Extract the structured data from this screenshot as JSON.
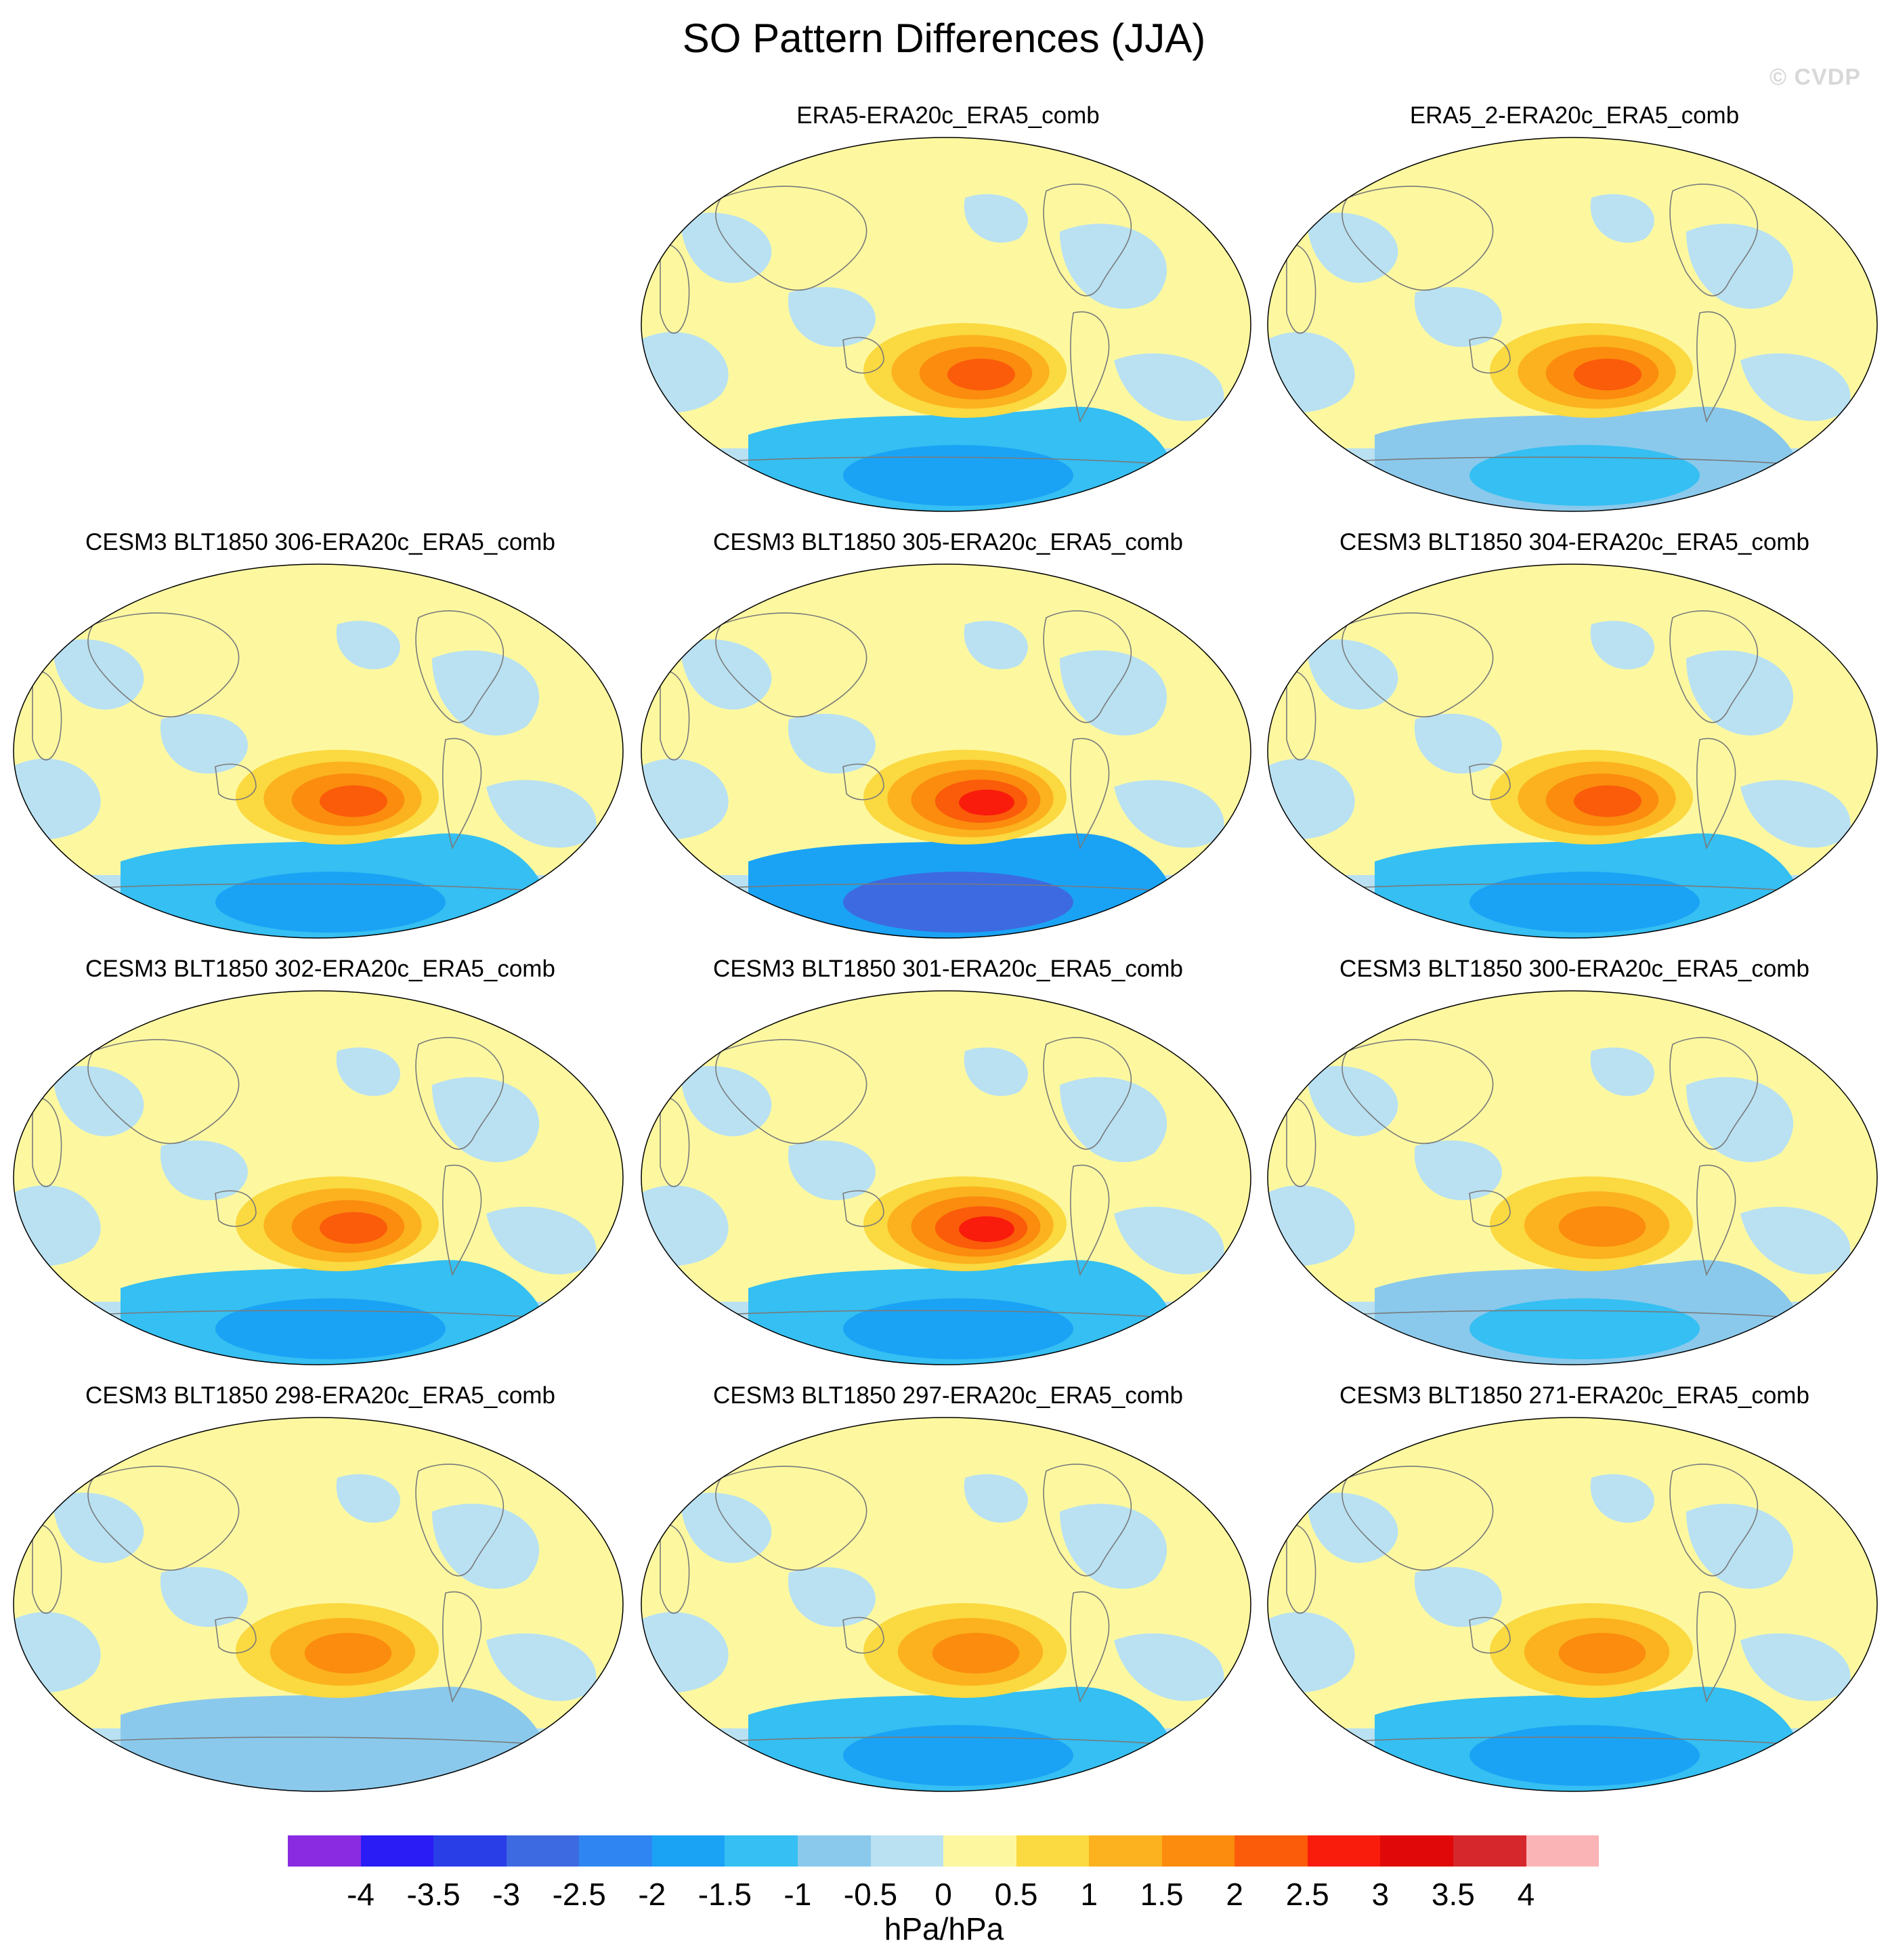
{
  "title": "SO Pattern Differences (JJA)",
  "watermark": "© CVDP",
  "panels": [
    {
      "label": "ERA5-ERA20c_ERA5_comb",
      "max_anomaly": 2.5,
      "min_anomaly": -2.0
    },
    {
      "label": "ERA5_2-ERA20c_ERA5_comb",
      "max_anomaly": 2.5,
      "min_anomaly": -1.5
    },
    {
      "label": "CESM3 BLT1850 306-ERA20c_ERA5_comb",
      "max_anomaly": 2.5,
      "min_anomaly": -2.0
    },
    {
      "label": "CESM3 BLT1850 305-ERA20c_ERA5_comb",
      "max_anomaly": 3.0,
      "min_anomaly": -3.0
    },
    {
      "label": "CESM3 BLT1850 304-ERA20c_ERA5_comb",
      "max_anomaly": 2.5,
      "min_anomaly": -2.0
    },
    {
      "label": "CESM3 BLT1850 302-ERA20c_ERA5_comb",
      "max_anomaly": 2.5,
      "min_anomaly": -2.0
    },
    {
      "label": "CESM3 BLT1850 301-ERA20c_ERA5_comb",
      "max_anomaly": 3.0,
      "min_anomaly": -2.0
    },
    {
      "label": "CESM3 BLT1850 300-ERA20c_ERA5_comb",
      "max_anomaly": 2.0,
      "min_anomaly": -1.5
    },
    {
      "label": "CESM3 BLT1850 298-ERA20c_ERA5_comb",
      "max_anomaly": 2.0,
      "min_anomaly": -1.0
    },
    {
      "label": "CESM3 BLT1850 297-ERA20c_ERA5_comb",
      "max_anomaly": 2.0,
      "min_anomaly": -2.0
    },
    {
      "label": "CESM3 BLT1850 271-ERA20c_ERA5_comb",
      "max_anomaly": 2.0,
      "min_anomaly": -2.0
    }
  ],
  "colorbar": {
    "colors": [
      "#8a2be2",
      "#2a1cf5",
      "#2a3ee8",
      "#3d6ae0",
      "#2f86f2",
      "#1aa3f5",
      "#35bff2",
      "#8ac9ec",
      "#b9e1f2",
      "#fdf8a0",
      "#fbd940",
      "#fbb21e",
      "#fb8c0e",
      "#fa5c0a",
      "#f91c0c",
      "#e00808",
      "#d6282c",
      "#fbb4b6"
    ],
    "labels": [
      "-4",
      "-3.5",
      "-3",
      "-2.5",
      "-2",
      "-1.5",
      "-1",
      "-0.5",
      "0",
      "0.5",
      "1",
      "1.5",
      "2",
      "2.5",
      "3",
      "3.5",
      "4"
    ],
    "units": "hPa/hPa"
  }
}
